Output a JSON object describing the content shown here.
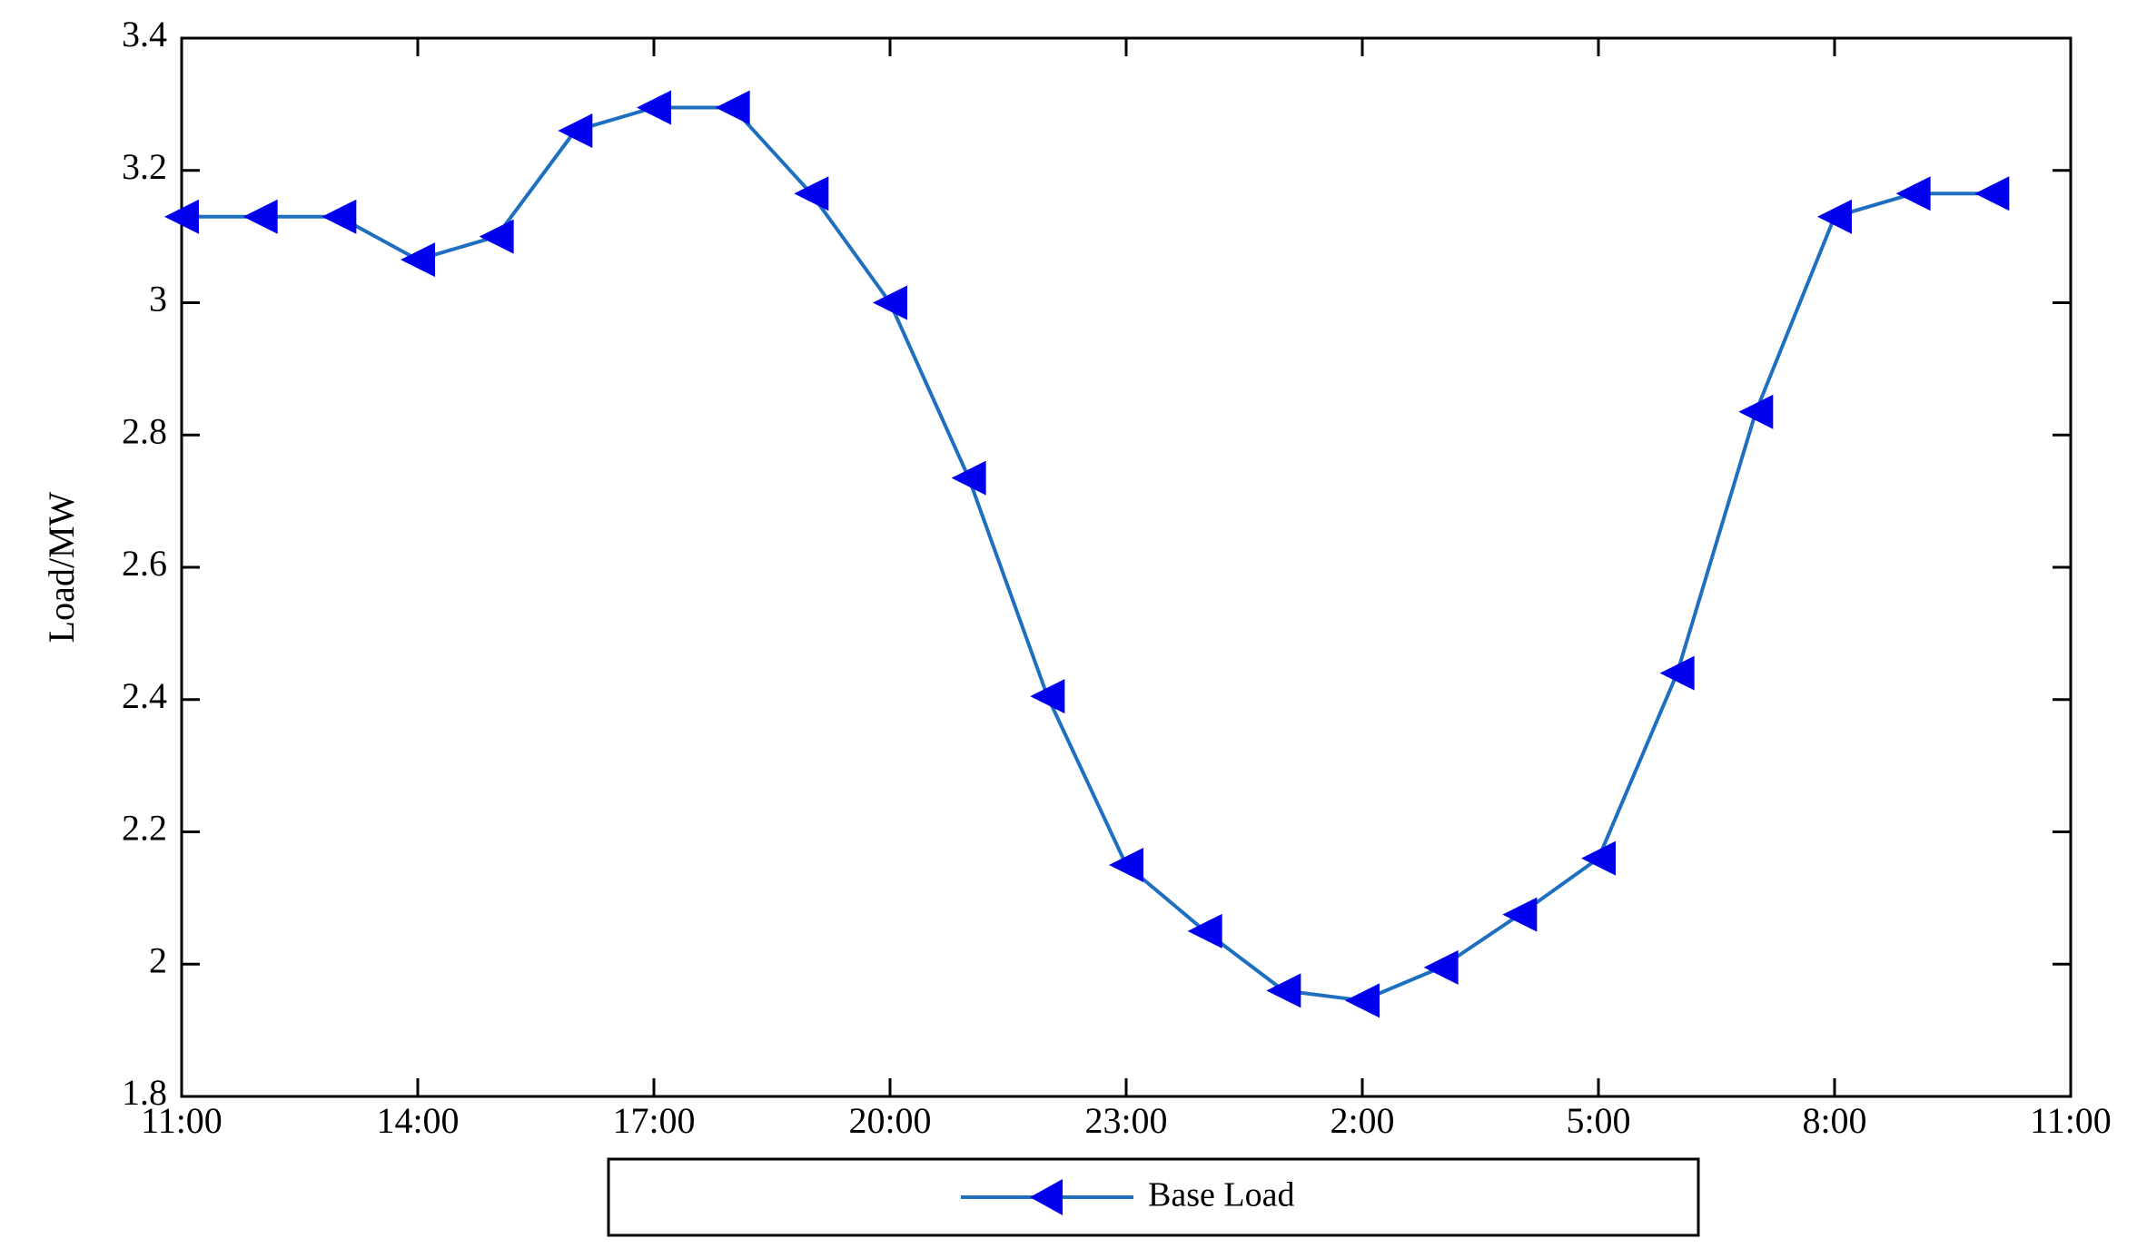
{
  "chart_data": {
    "type": "line",
    "title": "",
    "xlabel": "",
    "ylabel": "Load/MW",
    "xlim": [
      0,
      24
    ],
    "ylim": [
      1.8,
      3.4
    ],
    "x_ticks": [
      0,
      3,
      6,
      9,
      12,
      15,
      18,
      21,
      24
    ],
    "x_tick_labels": [
      "11:00",
      "14:00",
      "17:00",
      "20:00",
      "23:00",
      "2:00",
      "5:00",
      "8:00",
      "11:00"
    ],
    "y_ticks": [
      1.8,
      2.0,
      2.2,
      2.4,
      2.6,
      2.8,
      3.0,
      3.2,
      3.4
    ],
    "y_tick_labels": [
      "1.8",
      "2",
      "2.2",
      "2.4",
      "2.6",
      "2.8",
      "3",
      "3.2",
      "3.4"
    ],
    "grid": false,
    "legend_position": "bottom-center",
    "x": [
      "11:00",
      "12:00",
      "13:00",
      "14:00",
      "15:00",
      "16:00",
      "17:00",
      "18:00",
      "19:00",
      "20:00",
      "21:00",
      "22:00",
      "23:00",
      "0:00",
      "1:00",
      "2:00",
      "3:00",
      "4:00",
      "5:00",
      "6:00",
      "7:00",
      "8:00",
      "9:00",
      "10:00"
    ],
    "series": [
      {
        "name": "Base Load",
        "color": "#1f6fc0",
        "marker": "triangle-left",
        "marker_color": "#0000ee",
        "values": [
          3.13,
          3.13,
          3.13,
          3.065,
          3.1,
          3.26,
          3.295,
          3.295,
          3.165,
          3.0,
          2.735,
          2.405,
          2.15,
          2.05,
          1.96,
          1.945,
          1.995,
          2.075,
          2.16,
          2.44,
          2.835,
          3.13,
          3.165,
          3.165
        ]
      }
    ]
  }
}
